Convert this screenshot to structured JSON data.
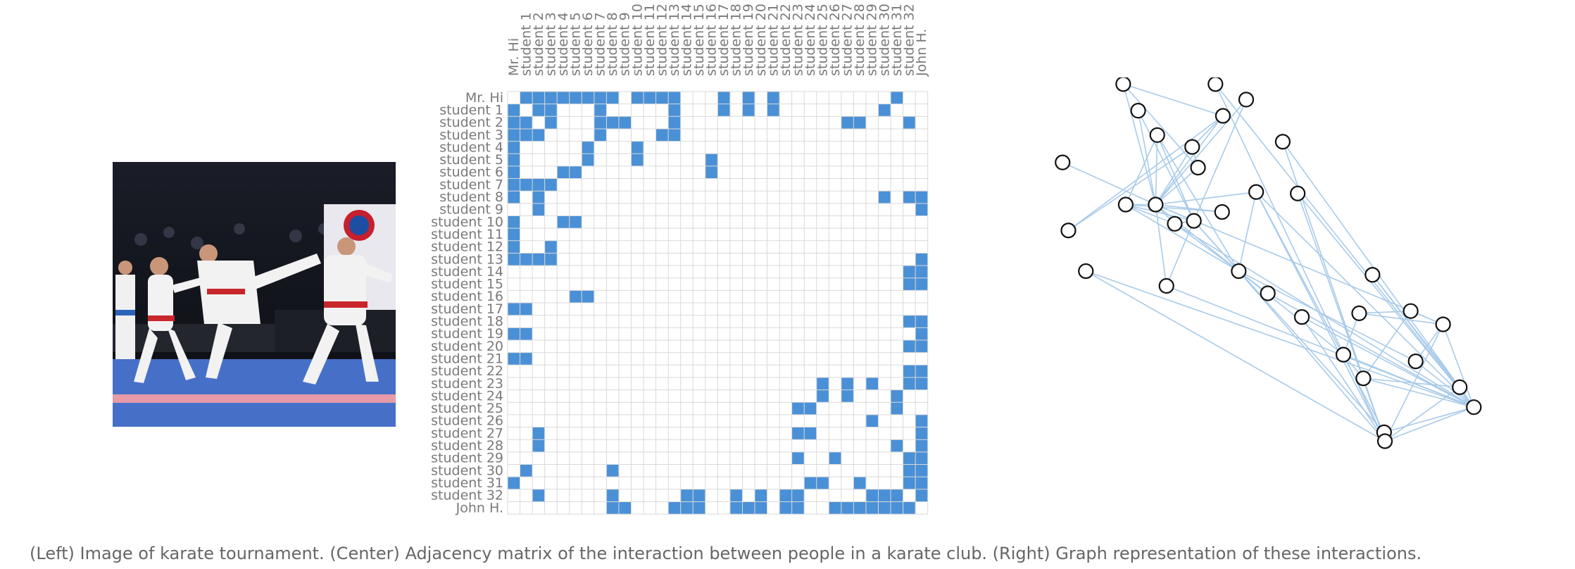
{
  "photo": {
    "description_icon": "karate-photo",
    "colors": {
      "floor": "#4670c8",
      "gi": "#f2f2f2",
      "belt": "#c8262b",
      "background": "#111319",
      "hair": "#3a2418"
    }
  },
  "matrix": {
    "labels": [
      "Mr. Hi",
      "student 1",
      "student 2",
      "student 3",
      "student 4",
      "student 5",
      "student 6",
      "student 7",
      "student 8",
      "student 9",
      "student 10",
      "student 11",
      "student 12",
      "student 13",
      "student 14",
      "student 15",
      "student 16",
      "student 17",
      "student 18",
      "student 19",
      "student 20",
      "student 21",
      "student 22",
      "student 23",
      "student 24",
      "student 25",
      "student 26",
      "student 27",
      "student 28",
      "student 29",
      "student 30",
      "student 31",
      "student 32",
      "John H."
    ],
    "edges": [
      [
        0,
        1
      ],
      [
        0,
        2
      ],
      [
        0,
        3
      ],
      [
        0,
        4
      ],
      [
        0,
        5
      ],
      [
        0,
        6
      ],
      [
        0,
        7
      ],
      [
        0,
        8
      ],
      [
        0,
        10
      ],
      [
        0,
        11
      ],
      [
        0,
        12
      ],
      [
        0,
        13
      ],
      [
        0,
        17
      ],
      [
        0,
        19
      ],
      [
        0,
        21
      ],
      [
        0,
        31
      ],
      [
        1,
        2
      ],
      [
        1,
        3
      ],
      [
        1,
        7
      ],
      [
        1,
        13
      ],
      [
        1,
        17
      ],
      [
        1,
        19
      ],
      [
        1,
        21
      ],
      [
        1,
        30
      ],
      [
        2,
        3
      ],
      [
        2,
        7
      ],
      [
        2,
        8
      ],
      [
        2,
        9
      ],
      [
        2,
        13
      ],
      [
        2,
        27
      ],
      [
        2,
        28
      ],
      [
        2,
        32
      ],
      [
        3,
        7
      ],
      [
        3,
        12
      ],
      [
        3,
        13
      ],
      [
        4,
        6
      ],
      [
        4,
        10
      ],
      [
        5,
        6
      ],
      [
        5,
        10
      ],
      [
        5,
        16
      ],
      [
        6,
        16
      ],
      [
        8,
        30
      ],
      [
        8,
        32
      ],
      [
        8,
        33
      ],
      [
        9,
        33
      ],
      [
        13,
        33
      ],
      [
        14,
        32
      ],
      [
        14,
        33
      ],
      [
        15,
        32
      ],
      [
        15,
        33
      ],
      [
        18,
        32
      ],
      [
        18,
        33
      ],
      [
        19,
        33
      ],
      [
        20,
        32
      ],
      [
        20,
        33
      ],
      [
        22,
        32
      ],
      [
        22,
        33
      ],
      [
        23,
        25
      ],
      [
        23,
        27
      ],
      [
        23,
        29
      ],
      [
        23,
        32
      ],
      [
        23,
        33
      ],
      [
        24,
        25
      ],
      [
        24,
        27
      ],
      [
        24,
        31
      ],
      [
        25,
        31
      ],
      [
        26,
        29
      ],
      [
        26,
        33
      ],
      [
        27,
        33
      ],
      [
        28,
        31
      ],
      [
        28,
        33
      ],
      [
        29,
        32
      ],
      [
        29,
        33
      ],
      [
        30,
        32
      ],
      [
        30,
        33
      ],
      [
        31,
        32
      ],
      [
        31,
        33
      ],
      [
        32,
        33
      ]
    ],
    "colors": {
      "filled": "#4a90d6",
      "grid": "#d9d9d9",
      "label": "#7a7a7a"
    }
  },
  "graph": {
    "colors": {
      "edge": "#a9cbea",
      "node_fill": "#ffffff",
      "node_stroke": "#111111"
    }
  },
  "caption": "(Left) Image of karate tournament. (Center) Adjacency matrix of the interaction between people in a karate club. (Right) Graph representation of these interactions."
}
